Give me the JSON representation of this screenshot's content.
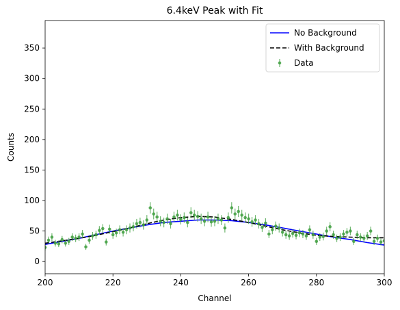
{
  "chart_data": {
    "type": "scatter",
    "title": "6.4keV Peak with Fit",
    "xlabel": "Channel",
    "ylabel": "Counts",
    "xlim": [
      200,
      300
    ],
    "ylim": [
      -20,
      395
    ],
    "xticks": [
      200,
      220,
      240,
      260,
      280,
      300
    ],
    "yticks": [
      0,
      50,
      100,
      150,
      200,
      250,
      300,
      350
    ],
    "grid": false,
    "legend_position": "top-right",
    "series": [
      {
        "name": "No Background",
        "kind": "line",
        "style": "solid",
        "color": "#0000ff",
        "x": [
          200,
          205,
          210,
          215,
          220,
          225,
          230,
          235,
          240,
          245,
          250,
          255,
          260,
          265,
          270,
          275,
          280,
          285,
          290,
          295,
          300
        ],
        "y": [
          28,
          33,
          38,
          44,
          50,
          55,
          60,
          64,
          66,
          68,
          68,
          67,
          64,
          60,
          55,
          50,
          45,
          40,
          36,
          31,
          27
        ]
      },
      {
        "name": "With Background",
        "kind": "line",
        "style": "dashed",
        "color": "#000000",
        "x": [
          200,
          205,
          210,
          215,
          220,
          225,
          230,
          235,
          240,
          245,
          250,
          255,
          260,
          265,
          270,
          275,
          280,
          285,
          290,
          295,
          300
        ],
        "y": [
          30,
          34,
          38,
          43,
          49,
          55,
          62,
          68,
          72,
          74,
          73,
          69,
          64,
          58,
          52,
          47,
          43,
          41,
          40,
          39,
          39
        ]
      },
      {
        "name": "Data",
        "kind": "errorbar",
        "color": "#3f9f3f",
        "x": [
          200,
          201,
          202,
          203,
          204,
          205,
          206,
          207,
          208,
          209,
          210,
          211,
          212,
          213,
          214,
          215,
          216,
          217,
          218,
          219,
          220,
          221,
          222,
          223,
          224,
          225,
          226,
          227,
          228,
          229,
          230,
          231,
          232,
          233,
          234,
          235,
          236,
          237,
          238,
          239,
          240,
          241,
          242,
          243,
          244,
          245,
          246,
          247,
          248,
          249,
          250,
          251,
          252,
          253,
          254,
          255,
          256,
          257,
          258,
          259,
          260,
          261,
          262,
          263,
          264,
          265,
          266,
          267,
          268,
          269,
          270,
          271,
          272,
          273,
          274,
          275,
          276,
          277,
          278,
          279,
          280,
          281,
          282,
          283,
          284,
          285,
          286,
          287,
          288,
          289,
          290,
          291,
          292,
          293,
          294,
          295,
          296,
          297,
          298,
          299,
          300
        ],
        "y": [
          23,
          35,
          40,
          30,
          29,
          36,
          30,
          33,
          40,
          38,
          40,
          45,
          24,
          35,
          42,
          44,
          51,
          54,
          32,
          53,
          44,
          47,
          52,
          48,
          52,
          55,
          57,
          62,
          64,
          60,
          68,
          88,
          78,
          73,
          66,
          64,
          70,
          62,
          73,
          76,
          69,
          72,
          64,
          80,
          76,
          74,
          70,
          66,
          73,
          65,
          66,
          70,
          68,
          55,
          72,
          88,
          78,
          82,
          76,
          72,
          70,
          65,
          68,
          62,
          56,
          63,
          45,
          52,
          58,
          55,
          48,
          44,
          42,
          46,
          43,
          47,
          45,
          42,
          52,
          44,
          33,
          40,
          41,
          50,
          57,
          44,
          38,
          40,
          45,
          48,
          50,
          33,
          44,
          40,
          38,
          42,
          50,
          33,
          38,
          32,
          34
        ]
      }
    ],
    "legend": [
      "No Background",
      "With Background",
      "Data"
    ]
  }
}
